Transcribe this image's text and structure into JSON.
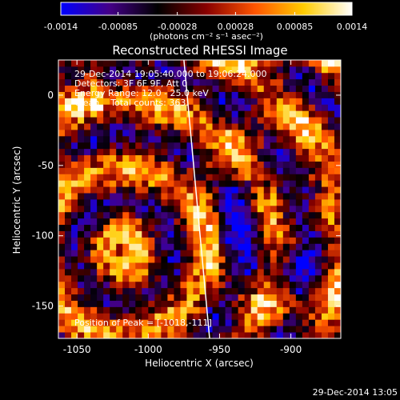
{
  "chart_data": {
    "type": "heatmap",
    "title": "Reconstructed RHESSI Image",
    "xlabel": "Heliocentric X (arcsec)",
    "ylabel": "Heliocentric Y (arcsec)",
    "xlim": [
      -1063,
      -865
    ],
    "ylim": [
      -173,
      25
    ],
    "x_ticks": [
      -1050,
      -1000,
      -950,
      -900
    ],
    "x_tick_labels": [
      "-1050",
      "-1000",
      "-950",
      "-900"
    ],
    "y_ticks": [
      0,
      -50,
      -100,
      -150
    ],
    "y_tick_labels": [
      "0",
      "-50",
      "-100",
      "-150"
    ],
    "colorbar": {
      "ticks": [
        -0.0014,
        -0.00085,
        -0.00028,
        0.00028,
        0.00085,
        0.0014
      ],
      "tick_labels": [
        "-0.0014",
        "-0.00085",
        "-0.00028",
        "0.00028",
        "0.00085",
        "0.0014"
      ],
      "range": [
        -0.0014,
        0.0014
      ],
      "unit_label": "(photons cm⁻² s⁻¹ asec⁻²)",
      "colors": [
        "#0000ff",
        "#440088",
        "#000000",
        "#880000",
        "#ff5500",
        "#ffcc00",
        "#ffffff"
      ]
    },
    "annotations": [
      "29-Dec-2014 19:05:40.000 to 19:06:24.000",
      "Detectors: 3F 6F 9F, Att 0",
      "Energy Range: 12.0 - 25.0 keV",
      "Clean    Total counts: 363."
    ],
    "peak_label": "Position of Peak = [-1018,-111]",
    "peak": [
      -1018,
      -111
    ],
    "limb_line": [
      [
        -975,
        25
      ],
      [
        -957,
        -173
      ]
    ]
  },
  "footer_timestamp": "29-Dec-2014 13:05"
}
